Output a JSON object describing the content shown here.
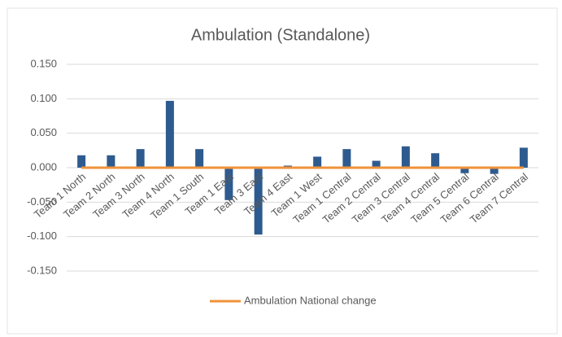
{
  "chart_data": {
    "type": "bar",
    "title": "Ambulation (Standalone)",
    "categories": [
      "Team 1 North",
      "Team 2 North",
      "Team 3 North",
      "Team 4 North",
      "Team 1 South",
      "Team 1 East",
      "Team 3 East",
      "Team 4 East",
      "Team 1 West",
      "Team 1 Central",
      "Team 2 Central",
      "Team 3 Central",
      "Team 4 Central",
      "Team 5 Central",
      "Team 6 Central",
      "Team 7 Central"
    ],
    "series": [
      {
        "type": "bar",
        "color": "#2e5b8f",
        "values": [
          0.018,
          0.018,
          0.027,
          0.097,
          0.027,
          -0.047,
          -0.097,
          0.003,
          0.016,
          0.027,
          0.01,
          0.031,
          0.021,
          -0.008,
          -0.009,
          0.029
        ]
      },
      {
        "type": "line",
        "name": "Ambulation National change",
        "color": "#f0923a",
        "values": [
          0,
          0,
          0,
          0,
          0,
          0,
          0,
          0,
          0,
          0,
          0,
          0,
          0,
          0,
          0,
          0
        ]
      }
    ],
    "ylim": [
      -0.15,
      0.15
    ],
    "yticks": [
      {
        "value": -0.15,
        "label": "-0.150"
      },
      {
        "value": -0.1,
        "label": "-0.100"
      },
      {
        "value": -0.05,
        "label": "-0.050"
      },
      {
        "value": 0,
        "label": "0.000"
      },
      {
        "value": 0.05,
        "label": "0.050"
      },
      {
        "value": 0.1,
        "label": "0.100"
      },
      {
        "value": 0.15,
        "label": "0.150"
      }
    ],
    "grid": true,
    "legend": "bottom"
  }
}
